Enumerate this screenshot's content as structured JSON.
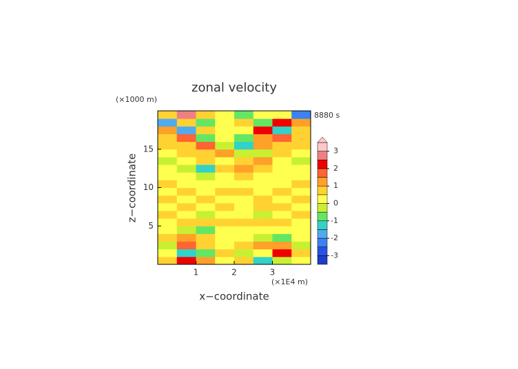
{
  "chart_data": {
    "type": "contour",
    "title": "zonal velocity",
    "time_label": "8880 s",
    "x_label": "x−coordinate",
    "y_label": "z−coordinate",
    "x_unit": "(×1E4 m)",
    "y_unit": "(×1000 m)",
    "xlim": [
      0,
      4
    ],
    "ylim": [
      0,
      20
    ],
    "xticks": [
      1,
      2,
      3
    ],
    "yticks": [
      5,
      10,
      15
    ],
    "x": [
      0.25,
      0.75,
      1.25,
      1.75,
      2.25,
      2.75,
      3.25,
      3.75
    ],
    "y": [
      0.5,
      1.5,
      2.5,
      3.5,
      4.5,
      5.5,
      6.5,
      7.5,
      8.5,
      9.5,
      10.5,
      11.5,
      12.5,
      13.5,
      14.5,
      15.5,
      16.5,
      17.5,
      18.5,
      19.5
    ],
    "values": [
      [
        0.5,
        2,
        1,
        0,
        0.5,
        -1.5,
        -0.5,
        0
      ],
      [
        0,
        -1.5,
        -1,
        0.5,
        -0.5,
        0,
        2,
        0.5
      ],
      [
        -0.5,
        1.5,
        0.5,
        0,
        0.5,
        1,
        1,
        -0.5
      ],
      [
        0.5,
        1,
        0.5,
        0,
        0,
        -0.5,
        -1,
        0
      ],
      [
        0,
        -0.5,
        -1,
        0,
        0,
        0,
        0,
        0
      ],
      [
        0,
        0.5,
        0.5,
        0.5,
        0.5,
        0.5,
        0.5,
        0
      ],
      [
        0.5,
        0,
        -0.5,
        0,
        0,
        -0.5,
        0,
        0.5
      ],
      [
        0,
        0.5,
        0,
        0.5,
        0,
        0.5,
        0.5,
        0
      ],
      [
        0.5,
        0,
        0.5,
        0,
        0,
        0.5,
        0,
        0.5
      ],
      [
        0,
        0.5,
        0,
        0.5,
        0.5,
        0,
        0.5,
        0
      ],
      [
        0.5,
        0,
        0,
        0,
        0,
        0,
        0,
        0.5
      ],
      [
        0,
        0,
        -0.5,
        0,
        0.5,
        0,
        0,
        0
      ],
      [
        0,
        -0.5,
        -1.5,
        0.5,
        1,
        0.5,
        0,
        0
      ],
      [
        -0.5,
        0,
        0.5,
        0,
        0.5,
        1,
        0,
        -0.5
      ],
      [
        0,
        0.5,
        0.5,
        1,
        -0.5,
        -0.5,
        0.5,
        0
      ],
      [
        0.5,
        0.5,
        1.5,
        -0.5,
        -1.5,
        1,
        0.5,
        0.5
      ],
      [
        0.5,
        1.5,
        -1,
        0,
        -1,
        1,
        1.5,
        0.5
      ],
      [
        1,
        -2,
        0.5,
        0,
        0,
        2,
        -1.5,
        0.5
      ],
      [
        -2,
        0.5,
        -1,
        0,
        0.5,
        -1,
        2,
        1
      ],
      [
        0.5,
        2.5,
        0.5,
        0,
        -1,
        0,
        0,
        -2.5
      ]
    ],
    "levels": [
      -3.5,
      -3,
      -2.5,
      -2,
      -1.5,
      -1,
      -0.5,
      0,
      0.5,
      1,
      1.5,
      2,
      2.5,
      3,
      3.5
    ],
    "colors": [
      "#1e1e8c",
      "#1e3cc8",
      "#2850e6",
      "#3c82f0",
      "#50aaf0",
      "#32d2c8",
      "#64e664",
      "#c8f032",
      "#ffff50",
      "#ffd232",
      "#ffa028",
      "#ff6432",
      "#f00000",
      "#f08080",
      "#ffc8c8"
    ],
    "colorbar_ticks": [
      -3,
      -2,
      -1,
      0,
      1,
      2,
      3
    ]
  }
}
